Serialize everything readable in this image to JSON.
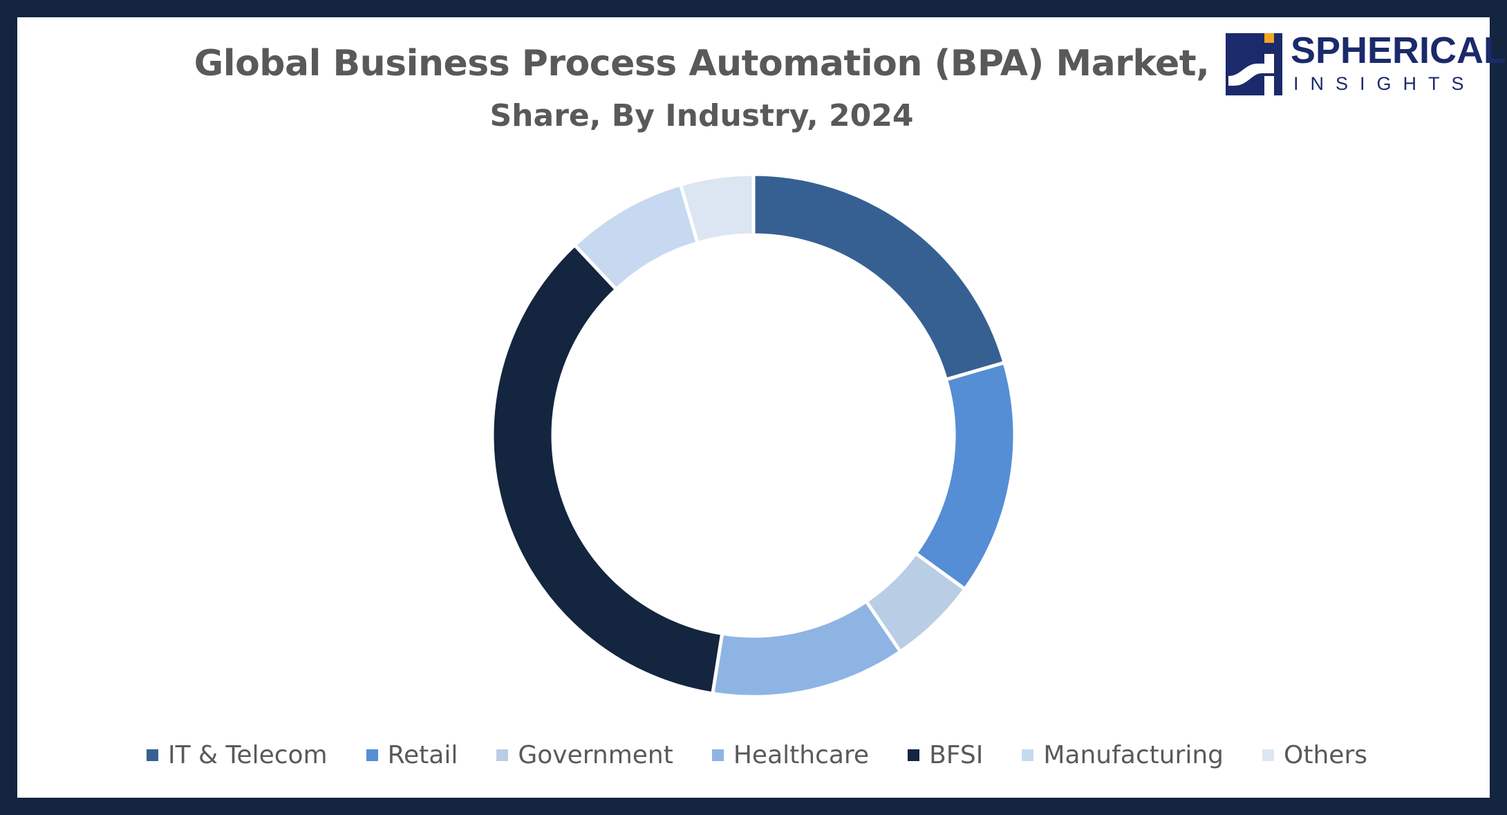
{
  "chart_data": {
    "type": "pie",
    "variant": "donut",
    "title": "Global Business Process Automation (BPA) Market,",
    "subtitle": "Share, By Industry, 2024",
    "categories": [
      "IT & Telecom",
      "Retail",
      "Government",
      "Healthcare",
      "BFSI",
      "Manufacturing",
      "Others"
    ],
    "values": [
      20.5,
      14.5,
      5.5,
      12.0,
      35.5,
      7.5,
      4.5
    ],
    "colors": [
      "#366092",
      "#558ed5",
      "#b9cde5",
      "#8eb4e3",
      "#13253f",
      "#c6d9f1",
      "#dce6f2"
    ],
    "legend_position": "bottom"
  },
  "brand": {
    "name": "SPHERICAL",
    "tagline": "INSIGHTS",
    "colors": {
      "navy": "#1b2a6b",
      "orange": "#f5a623"
    }
  },
  "frame_color": "#13253f"
}
